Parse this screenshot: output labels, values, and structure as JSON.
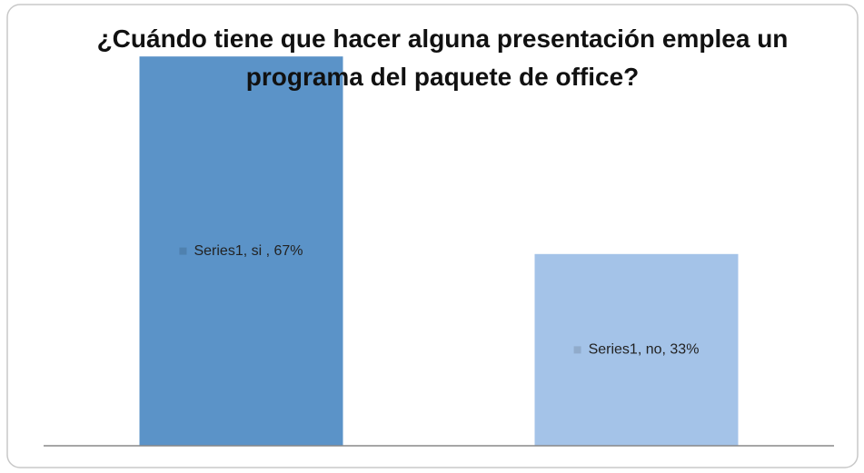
{
  "chart_data": {
    "type": "bar",
    "title": "¿Cuándo tiene que hacer alguna presentación emplea un programa del paquete de office?",
    "values": [
      67,
      33
    ],
    "value_labels": [
      "Series1, si , 67%",
      "Series1, no, 33%"
    ],
    "colors": [
      "#5b93c8",
      "#a4c3e8"
    ],
    "ylim": [
      0,
      70
    ]
  }
}
